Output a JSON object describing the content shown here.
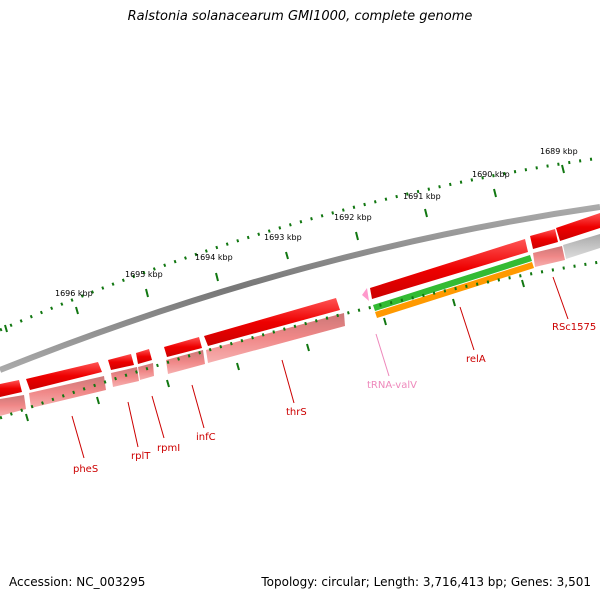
{
  "title": "Ralstonia solanacearum GMI1000, complete genome",
  "accession": "Accession: NC_003295",
  "topology": "Topology: circular; Length: 3,716,413 bp; Genes: 3,501",
  "kbp_labels": [
    "1689 kbp",
    "1690 kbp",
    "1691 kbp",
    "1692 kbp",
    "1693 kbp",
    "1694 kbp",
    "1695 kbp",
    "1696 kbp"
  ],
  "gene_labels": [
    "RSc1575",
    "relA",
    "tRNA-valV",
    "thrS",
    "infC",
    "rpmI",
    "rplT",
    "pheS"
  ],
  "colors": {
    "backbone": "#888888",
    "cds": "#ff0000",
    "cds_light": "#f08080",
    "rna_green": "#33bb33",
    "rna_orange": "#ff9900",
    "trna": "#ff99cc",
    "gene_label": "#cc0000",
    "trna_label": "#ee88bb",
    "tick": "#117711"
  }
}
